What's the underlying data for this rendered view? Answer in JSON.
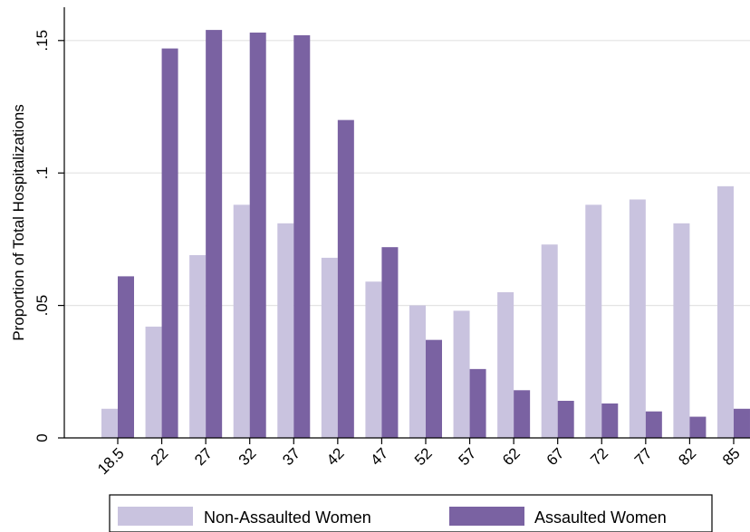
{
  "chart_data": {
    "type": "bar",
    "ylabel": "Proportion of Total Hospitalizations",
    "xlabel": "",
    "categories": [
      "18.5",
      "22",
      "27",
      "32",
      "37",
      "42",
      "47",
      "52",
      "57",
      "62",
      "67",
      "72",
      "77",
      "82",
      "85"
    ],
    "ylim": [
      0,
      0.165
    ],
    "yticks": [
      {
        "value": 0,
        "label": "0"
      },
      {
        "value": 0.05,
        "label": ".05"
      },
      {
        "value": 0.1,
        "label": ".1"
      },
      {
        "value": 0.15,
        "label": ".15"
      }
    ],
    "grid": true,
    "legend_position": "bottom",
    "series": [
      {
        "name": "Non-Assaulted Women",
        "color": "#c9c3df",
        "values": [
          0.011,
          0.042,
          0.069,
          0.088,
          0.081,
          0.068,
          0.059,
          0.05,
          0.048,
          0.055,
          0.073,
          0.088,
          0.09,
          0.081,
          0.095
        ]
      },
      {
        "name": "Assaulted Women",
        "color": "#7a62a2",
        "values": [
          0.061,
          0.147,
          0.154,
          0.153,
          0.152,
          0.12,
          0.072,
          0.037,
          0.026,
          0.018,
          0.014,
          0.013,
          0.01,
          0.008,
          0.011
        ]
      }
    ]
  }
}
